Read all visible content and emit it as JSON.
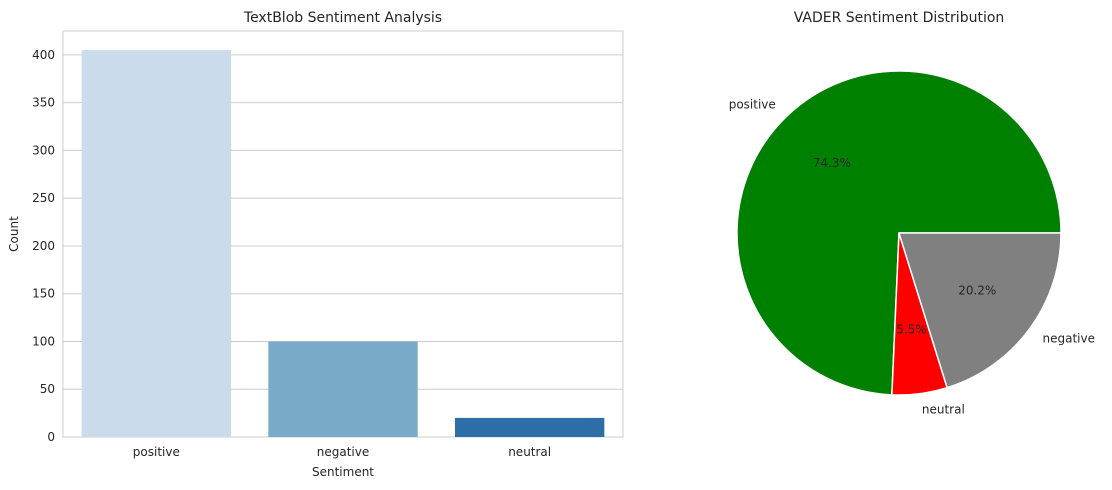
{
  "chart_data": [
    {
      "type": "bar",
      "title": "TextBlob Sentiment Analysis",
      "xlabel": "Sentiment",
      "ylabel": "Count",
      "categories": [
        "positive",
        "negative",
        "neutral"
      ],
      "values": [
        405,
        100,
        20
      ],
      "colors": [
        "#cadcec",
        "#79aac9",
        "#2e6ea8"
      ],
      "ylim": [
        0,
        425
      ],
      "yticks": [
        0,
        50,
        100,
        150,
        200,
        250,
        300,
        350,
        400
      ],
      "grid": true
    },
    {
      "type": "pie",
      "title": "VADER Sentiment Distribution",
      "slices": [
        {
          "label": "positive",
          "value": 74.3,
          "pct_label": "74.3%",
          "color": "#008000"
        },
        {
          "label": "neutral",
          "value": 5.5,
          "pct_label": "5.5%",
          "color": "#ff0000"
        },
        {
          "label": "negative",
          "value": 20.2,
          "pct_label": "20.2%",
          "color": "#808080"
        }
      ],
      "start_angle_deg": 0,
      "direction": "counterclockwise"
    }
  ]
}
